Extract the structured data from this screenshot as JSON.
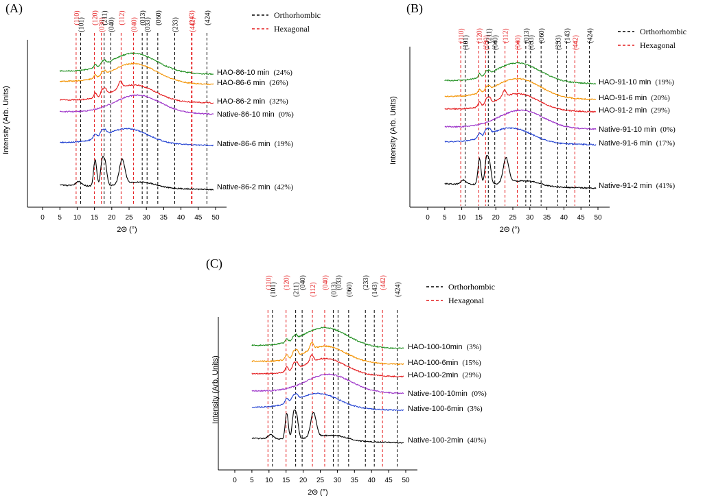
{
  "chart_data": [
    {
      "panel_label": "(A)",
      "type": "line",
      "xlabel": "2Θ (°)",
      "ylabel": "Intensity (Arb. Units)",
      "xlim": [
        -5,
        52
      ],
      "xticks": [
        0,
        5,
        10,
        15,
        20,
        25,
        30,
        35,
        40,
        45,
        50
      ],
      "legend": [
        {
          "label": "Orthorhombic",
          "color": "#000000"
        },
        {
          "label": "Hexagonal",
          "color": "#e41a1c"
        }
      ],
      "peaks": [
        {
          "label": "(110)",
          "x": 9.7,
          "phase": "hexagonal"
        },
        {
          "label": "(101)",
          "x": 11.0,
          "phase": "orthorhombic"
        },
        {
          "label": "(120)",
          "x": 15.0,
          "phase": "hexagonal"
        },
        {
          "label": "(030)",
          "x": 17.0,
          "phase": "hexagonal"
        },
        {
          "label": "(211)",
          "x": 17.8,
          "phase": "orthorhombic"
        },
        {
          "label": "(040)",
          "x": 19.7,
          "phase": "orthorhombic"
        },
        {
          "label": "(112)",
          "x": 22.7,
          "phase": "hexagonal"
        },
        {
          "label": "(040)",
          "x": 26.3,
          "phase": "hexagonal"
        },
        {
          "label": "(013)",
          "x": 28.8,
          "phase": "orthorhombic"
        },
        {
          "label": "(033)",
          "x": 30.2,
          "phase": "orthorhombic"
        },
        {
          "label": "(060)",
          "x": 33.3,
          "phase": "orthorhombic"
        },
        {
          "label": "(233)",
          "x": 38.2,
          "phase": "orthorhombic"
        },
        {
          "label": "(143)",
          "x": 43.0,
          "phase": "hexagonal"
        },
        {
          "label": "(442)",
          "x": 43.2,
          "phase": "hexagonal"
        },
        {
          "label": "(424)",
          "x": 47.5,
          "phase": "orthorhombic"
        }
      ],
      "series": [
        {
          "name": "HAO-86-10 min",
          "crystallinity": "(24%)",
          "color": "#1f8f1f",
          "profile": "amorphous_hao"
        },
        {
          "name": "HAO-86-6 min",
          "crystallinity": "(26%)",
          "color": "#f39200",
          "profile": "amorphous_hao"
        },
        {
          "name": "HAO-86-2 min",
          "crystallinity": "(32%)",
          "color": "#e41a1c",
          "profile": "semi_hao"
        },
        {
          "name": "Native-86-10 min",
          "crystallinity": "(0%)",
          "color": "#9b30c8",
          "profile": "amorphous"
        },
        {
          "name": "Native-86-6 min",
          "crystallinity": "(19%)",
          "color": "#1f3fd1",
          "profile": "semi_native"
        },
        {
          "name": "Native-86-2 min",
          "crystallinity": "(42%)",
          "color": "#000000",
          "profile": "crystalline"
        }
      ]
    },
    {
      "panel_label": "(B)",
      "type": "line",
      "xlabel": "2Θ (°)",
      "ylabel": "Intensity (Arb. Units)",
      "xlim": [
        -5,
        52
      ],
      "xticks": [
        0,
        5,
        10,
        15,
        20,
        25,
        30,
        35,
        40,
        45,
        50
      ],
      "legend": [
        {
          "label": "Orthorhombic",
          "color": "#000000"
        },
        {
          "label": "Hexagonal",
          "color": "#e41a1c"
        }
      ],
      "peaks": [
        {
          "label": "(110)",
          "x": 9.7,
          "phase": "hexagonal"
        },
        {
          "label": "(101)",
          "x": 11.0,
          "phase": "orthorhombic"
        },
        {
          "label": "(120)",
          "x": 15.0,
          "phase": "hexagonal"
        },
        {
          "label": "(030)",
          "x": 17.0,
          "phase": "hexagonal"
        },
        {
          "label": "(211)",
          "x": 17.8,
          "phase": "orthorhombic"
        },
        {
          "label": "(040)",
          "x": 19.7,
          "phase": "orthorhombic"
        },
        {
          "label": "(112)",
          "x": 22.7,
          "phase": "hexagonal"
        },
        {
          "label": "(040)",
          "x": 26.3,
          "phase": "hexagonal"
        },
        {
          "label": "(013)",
          "x": 28.8,
          "phase": "orthorhombic"
        },
        {
          "label": "(033)",
          "x": 30.2,
          "phase": "orthorhombic"
        },
        {
          "label": "(060)",
          "x": 33.3,
          "phase": "orthorhombic"
        },
        {
          "label": "(233)",
          "x": 38.2,
          "phase": "orthorhombic"
        },
        {
          "label": "(143)",
          "x": 40.8,
          "phase": "orthorhombic"
        },
        {
          "label": "(442)",
          "x": 43.2,
          "phase": "hexagonal"
        },
        {
          "label": "(424)",
          "x": 47.5,
          "phase": "orthorhombic"
        }
      ],
      "series": [
        {
          "name": "HAO-91-10 min",
          "crystallinity": "(19%)",
          "color": "#1f8f1f",
          "profile": "amorphous_hao"
        },
        {
          "name": "HAO-91-6 min",
          "crystallinity": "(20%)",
          "color": "#f39200",
          "profile": "amorphous_hao"
        },
        {
          "name": "HAO-91-2 min",
          "crystallinity": "(29%)",
          "color": "#e41a1c",
          "profile": "semi_hao"
        },
        {
          "name": "Native-91-10 min",
          "crystallinity": "(0%)",
          "color": "#9b30c8",
          "profile": "amorphous"
        },
        {
          "name": "Native-91-6 min",
          "crystallinity": "(17%)",
          "color": "#1f3fd1",
          "profile": "semi_native"
        },
        {
          "name": "Native-91-2 min",
          "crystallinity": "(41%)",
          "color": "#000000",
          "profile": "crystalline"
        }
      ]
    },
    {
      "panel_label": "(C)",
      "type": "line",
      "xlabel": "2Θ (°)",
      "ylabel": "Intensity (Arb. Units)",
      "xlim": [
        -5,
        52
      ],
      "xticks": [
        0,
        5,
        10,
        15,
        20,
        25,
        30,
        35,
        40,
        45,
        50
      ],
      "legend": [
        {
          "label": "Orthorhombic",
          "color": "#000000"
        },
        {
          "label": "Hexagonal",
          "color": "#e41a1c"
        }
      ],
      "peaks": [
        {
          "label": "(110)",
          "x": 9.7,
          "phase": "hexagonal"
        },
        {
          "label": "(101)",
          "x": 11.0,
          "phase": "orthorhombic"
        },
        {
          "label": "(120)",
          "x": 15.0,
          "phase": "hexagonal"
        },
        {
          "label": "(211)",
          "x": 17.8,
          "phase": "orthorhombic"
        },
        {
          "label": "(040)",
          "x": 19.7,
          "phase": "orthorhombic"
        },
        {
          "label": "(112)",
          "x": 22.7,
          "phase": "hexagonal"
        },
        {
          "label": "(040)",
          "x": 26.3,
          "phase": "hexagonal"
        },
        {
          "label": "(013)",
          "x": 28.8,
          "phase": "orthorhombic"
        },
        {
          "label": "(033)",
          "x": 30.2,
          "phase": "orthorhombic"
        },
        {
          "label": "(060)",
          "x": 33.3,
          "phase": "orthorhombic"
        },
        {
          "label": "(233)",
          "x": 38.2,
          "phase": "orthorhombic"
        },
        {
          "label": "(143)",
          "x": 40.8,
          "phase": "orthorhombic"
        },
        {
          "label": "(442)",
          "x": 43.2,
          "phase": "hexagonal"
        },
        {
          "label": "(424)",
          "x": 47.5,
          "phase": "orthorhombic"
        }
      ],
      "series": [
        {
          "name": "HAO-100-10min",
          "crystallinity": "(3%)",
          "color": "#1f8f1f",
          "profile": "amorphous_hao"
        },
        {
          "name": "HAO-100-6min",
          "crystallinity": "(15%)",
          "color": "#f39200",
          "profile": "semi_hao"
        },
        {
          "name": "HAO-100-2min",
          "crystallinity": "(29%)",
          "color": "#e41a1c",
          "profile": "semi_hao"
        },
        {
          "name": "Native-100-10min",
          "crystallinity": "(0%)",
          "color": "#9b30c8",
          "profile": "amorphous"
        },
        {
          "name": "Native-100-6min",
          "crystallinity": "(3%)",
          "color": "#1f3fd1",
          "profile": "semi_native"
        },
        {
          "name": "Native-100-2min",
          "crystallinity": "(40%)",
          "color": "#000000",
          "profile": "crystalline"
        }
      ]
    }
  ]
}
